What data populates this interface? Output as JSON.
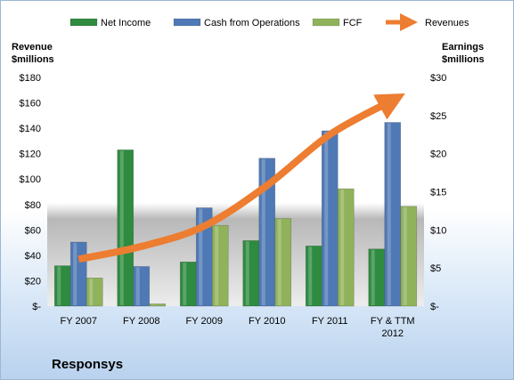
{
  "chart_data": {
    "type": "bar",
    "title": "Responsys",
    "categories": [
      "FY 2007",
      "FY 2008",
      "FY 2009",
      "FY 2010",
      "FY 2011",
      "FY & TTM 2012"
    ],
    "category_lines": [
      [
        "FY 2007"
      ],
      [
        "FY 2008"
      ],
      [
        "FY 2009"
      ],
      [
        "FY 2010"
      ],
      [
        "FY 2011"
      ],
      [
        "FY & TTM",
        "2012"
      ]
    ],
    "series": [
      {
        "name": "Net Income",
        "axis": "right",
        "color": "#2e8b3f",
        "values": [
          5.3,
          20.5,
          5.8,
          8.6,
          7.9,
          7.5
        ]
      },
      {
        "name": "Cash from Operations",
        "axis": "right",
        "color": "#4f79b5",
        "values": [
          8.4,
          5.2,
          12.9,
          19.4,
          23.0,
          24.1
        ]
      },
      {
        "name": "FCF",
        "axis": "right",
        "color": "#8fb25a",
        "values": [
          3.7,
          0.3,
          10.6,
          11.5,
          15.4,
          13.1
        ]
      },
      {
        "name": "Revenues",
        "axis": "left",
        "type": "line",
        "color": "#ed7d31",
        "values": [
          37,
          47,
          63,
          95,
          135,
          162
        ]
      }
    ],
    "left_axis": {
      "label_lines": [
        "Revenue",
        "$millions"
      ],
      "ylim": [
        0,
        180
      ],
      "ticks": [
        0,
        20,
        40,
        60,
        80,
        100,
        120,
        140,
        160,
        180
      ],
      "tick_labels": [
        "$-",
        "$20",
        "$40",
        "$60",
        "$80",
        "$100",
        "$120",
        "$140",
        "$160",
        "$180"
      ]
    },
    "right_axis": {
      "label_lines": [
        "Earnings",
        "$millions"
      ],
      "ylim": [
        0,
        30
      ],
      "ticks": [
        0,
        5,
        10,
        15,
        20,
        25,
        30
      ],
      "tick_labels": [
        "$-",
        "$5",
        "$10",
        "$15",
        "$20",
        "$25",
        "$30"
      ]
    },
    "legend_position": "top",
    "grid": false
  }
}
